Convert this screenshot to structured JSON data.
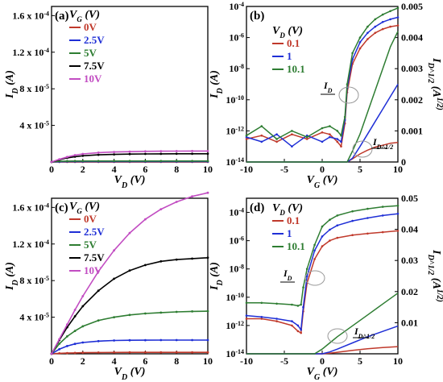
{
  "colors": {
    "red": "#c0392b",
    "blue": "#1f2fd6",
    "green": "#2e7d32",
    "black": "#000000",
    "magenta": "#c24dc2",
    "ellipse": "#999999"
  },
  "chart_data": [
    {
      "id": "a",
      "type": "line",
      "panel_label": "(a)",
      "legend_title": "V_G (V)",
      "xlabel": "V_D (V)",
      "ylabel": "I_D (A)",
      "xlim": [
        0,
        10
      ],
      "ylim": [
        0,
        0.00017
      ],
      "xticks": [
        0,
        2,
        4,
        6,
        8,
        10
      ],
      "yticks": [
        {
          "v": 4e-05,
          "label": "4 x 10^-5"
        },
        {
          "v": 8e-05,
          "label": "8 x 10^-5"
        },
        {
          "v": 0.00012,
          "label": "1.2 x 10^-4"
        },
        {
          "v": 0.00016,
          "label": "1.6 x 10^-4"
        }
      ],
      "x": [
        0,
        0.5,
        1,
        1.5,
        2,
        3,
        4,
        5,
        6,
        7,
        8,
        9,
        10
      ],
      "series": [
        {
          "name": "0V",
          "color": "red",
          "values": [
            0,
            1e-07,
            1e-07,
            1e-07,
            1e-07,
            1e-07,
            1e-07,
            1e-07,
            1e-07,
            1e-07,
            1e-07,
            1e-07,
            1e-07
          ]
        },
        {
          "name": "2.5V",
          "color": "blue",
          "values": [
            0,
            3e-07,
            4e-07,
            4e-07,
            4e-07,
            4e-07,
            4e-07,
            4e-07,
            4e-07,
            4e-07,
            4e-07,
            4e-07,
            4e-07
          ]
        },
        {
          "name": "5V",
          "color": "green",
          "values": [
            0,
            8e-07,
            1e-06,
            1.1e-06,
            1.1e-06,
            1.1e-06,
            1.1e-06,
            1.1e-06,
            1.1e-06,
            1.1e-06,
            1.1e-06,
            1.1e-06,
            1.1e-06
          ]
        },
        {
          "name": "7.5V",
          "color": "black",
          "values": [
            0,
            2.5e-06,
            4.5e-06,
            5.8e-06,
            6.8e-06,
            7.8e-06,
            8.3e-06,
            8.6e-06,
            8.8e-06,
            8.9e-06,
            9e-06,
            9e-06,
            9e-06
          ]
        },
        {
          "name": "10V",
          "color": "magenta",
          "values": [
            0,
            3e-06,
            5.5e-06,
            7.5e-06,
            8.8e-06,
            1.02e-05,
            1.09e-05,
            1.13e-05,
            1.16e-05,
            1.18e-05,
            1.19e-05,
            1.2e-05,
            1.2e-05
          ]
        }
      ]
    },
    {
      "id": "b",
      "type": "line",
      "panel_label": "(b)",
      "legend_title": "V_D (V)",
      "xlabel": "V_G (V)",
      "ylabel": "I_D (A)",
      "y2label": "I_D^1/2 (A^1/2)",
      "ylog": true,
      "xlim": [
        -10,
        10
      ],
      "ylim": [
        1e-14,
        0.0001
      ],
      "y2lim": [
        0,
        0.005
      ],
      "xticks": [
        -10,
        -5,
        0,
        5,
        10
      ],
      "yticks": [
        {
          "v": 1e-14,
          "label": "10^-14"
        },
        {
          "v": 1e-12,
          "label": "10^-12"
        },
        {
          "v": 1e-10,
          "label": "10^-10"
        },
        {
          "v": 1e-08,
          "label": "10^-8"
        },
        {
          "v": 1e-06,
          "label": "10^-6"
        },
        {
          "v": 0.0001,
          "label": "10^-4"
        }
      ],
      "y2ticks": [
        "0",
        "0.001",
        "0.002",
        "0.003",
        "0.004",
        "0.005"
      ],
      "annotation_id": "I_D",
      "annotation_sqrt": "I_D^1/2",
      "x": [
        -10,
        -8,
        -6,
        -4,
        -2,
        0,
        1,
        2,
        2.5,
        3,
        3.3,
        4,
        5,
        6,
        7,
        8,
        9,
        10
      ],
      "series": [
        {
          "name": "0.1",
          "color": "red",
          "log_values": [
            3e-13,
            5e-13,
            2e-13,
            6e-13,
            3e-13,
            8e-13,
            6e-13,
            2e-13,
            1e-13,
            3e-12,
            3e-10,
            2e-08,
            2e-07,
            8e-07,
            2e-06,
            3.5e-06,
            5e-06,
            6e-06
          ],
          "sqrt_values": [
            0,
            0,
            0,
            0,
            0,
            0,
            0,
            0,
            0,
            0,
            0,
            0.0001,
            0.00026,
            0.00038,
            0.00048,
            0.00054,
            0.0006,
            0.00063
          ]
        },
        {
          "name": "1",
          "color": "blue",
          "log_values": [
            4e-13,
            2e-13,
            6e-13,
            1e-13,
            5e-13,
            2e-13,
            4e-13,
            3e-13,
            2e-13,
            5e-12,
            6e-10,
            4e-08,
            5e-07,
            2e-06,
            5e-06,
            1e-05,
            1.5e-05,
            2e-05
          ],
          "sqrt_values": [
            0,
            0,
            0,
            0,
            0,
            0,
            0,
            0,
            0,
            0,
            0,
            0.00012,
            0.0005,
            0.0009,
            0.0013,
            0.0017,
            0.0021,
            0.0025
          ]
        },
        {
          "name": "10.1",
          "color": "green",
          "log_values": [
            5e-13,
            2e-12,
            3e-13,
            1e-12,
            4e-13,
            1.5e-12,
            2e-12,
            1e-12,
            5e-13,
            8e-12,
            1e-09,
            1e-07,
            1e-06,
            5e-06,
            1.5e-05,
            3e-05,
            5e-05,
            8e-05
          ],
          "sqrt_values": [
            0,
            0,
            0,
            0,
            0,
            0,
            0,
            0,
            0,
            0,
            0,
            0.00035,
            0.0009,
            0.0016,
            0.0023,
            0.003,
            0.0037,
            0.0042
          ]
        }
      ]
    },
    {
      "id": "c",
      "type": "line",
      "panel_label": "(c)",
      "legend_title": "V_G (V)",
      "xlabel": "V_D (V)",
      "ylabel": "I_D (A)",
      "xlim": [
        0,
        10
      ],
      "ylim": [
        0,
        0.00017
      ],
      "xticks": [
        0,
        2,
        4,
        6,
        8,
        10
      ],
      "yticks": [
        {
          "v": 4e-05,
          "label": "4 x 10^-5"
        },
        {
          "v": 8e-05,
          "label": "8 x 10^-5"
        },
        {
          "v": 0.00012,
          "label": "1.2 x 10^-4"
        },
        {
          "v": 0.00016,
          "label": "1.6 x 10^-4"
        }
      ],
      "x": [
        0,
        0.5,
        1,
        1.5,
        2,
        3,
        4,
        5,
        6,
        7,
        8,
        9,
        10
      ],
      "series": [
        {
          "name": "0V",
          "color": "red",
          "values": [
            0,
            5e-07,
            8e-07,
            1e-06,
            1.2e-06,
            1.4e-06,
            1.5e-06,
            1.6e-06,
            1.6e-06,
            1.6e-06,
            1.6e-06,
            1.6e-06,
            1.6e-06
          ]
        },
        {
          "name": "2.5V",
          "color": "blue",
          "values": [
            0,
            5e-06,
            8.5e-06,
            1.08e-05,
            1.23e-05,
            1.38e-05,
            1.45e-05,
            1.48e-05,
            1.49e-05,
            1.5e-05,
            1.5e-05,
            1.5e-05,
            1.5e-05
          ]
        },
        {
          "name": "5V",
          "color": "green",
          "values": [
            0,
            1.1e-05,
            1.9e-05,
            2.5e-05,
            3e-05,
            3.65e-05,
            4e-05,
            4.25e-05,
            4.4e-05,
            4.5e-05,
            4.58e-05,
            4.63e-05,
            4.66e-05
          ]
        },
        {
          "name": "7.5V",
          "color": "black",
          "values": [
            0,
            1.5e-05,
            2.9e-05,
            4.1e-05,
            5.2e-05,
            6.9e-05,
            8.2e-05,
            9.1e-05,
            9.7e-05,
            0.000101,
            0.000103,
            0.000104,
            0.000105
          ]
        },
        {
          "name": "10V",
          "color": "magenta",
          "values": [
            0,
            1.6e-05,
            3.2e-05,
            4.8e-05,
            6.3e-05,
            9e-05,
            0.000113,
            0.000132,
            0.000147,
            0.000158,
            0.000166,
            0.000172,
            0.000176
          ]
        }
      ]
    },
    {
      "id": "d",
      "type": "line",
      "panel_label": "(d)",
      "legend_title": "V_D (V)",
      "xlabel": "V_G (V)",
      "ylabel": "I_D (A)",
      "y2label": "I_D^1/2 (A^1/2)",
      "ylog": true,
      "xlim": [
        -10,
        10
      ],
      "ylim": [
        1e-14,
        0.001
      ],
      "y2lim": [
        0,
        0.05
      ],
      "xticks": [
        -10,
        -5,
        0,
        5,
        10
      ],
      "yticks": [
        {
          "v": 1e-14,
          "label": "10^-14"
        },
        {
          "v": 1e-12,
          "label": "10^-12"
        },
        {
          "v": 1e-10,
          "label": "10^-10"
        },
        {
          "v": 1e-08,
          "label": "10^-8"
        },
        {
          "v": 1e-06,
          "label": "10^-6"
        },
        {
          "v": 0.0001,
          "label": "10^-4"
        }
      ],
      "y2ticks": [
        "0.01",
        "0.02",
        "0.03",
        "0.04",
        "0.05"
      ],
      "annotation_id": "I_D",
      "annotation_sqrt": "I_D^1/2",
      "x": [
        -10,
        -8,
        -6,
        -4,
        -3.2,
        -2.8,
        -2.5,
        -2,
        -1,
        0,
        1,
        2,
        4,
        6,
        8,
        10
      ],
      "series": [
        {
          "name": "0.1",
          "color": "red",
          "log_values": [
            3e-12,
            3e-12,
            2e-12,
            1e-12,
            4e-13,
            3e-13,
            1e-11,
            1e-09,
            5e-08,
            4e-07,
            1e-06,
            1.6e-06,
            2.5e-06,
            3.2e-06,
            4e-06,
            5e-06
          ],
          "sqrt_values": [
            0,
            0,
            0,
            0,
            0,
            0,
            0,
            0,
            0,
            0,
            0.0002,
            0.0005,
            0.0011,
            0.0016,
            0.002,
            0.0023
          ]
        },
        {
          "name": "1",
          "color": "blue",
          "log_values": [
            5e-12,
            4e-12,
            3e-12,
            2e-12,
            1e-12,
            5e-13,
            2e-11,
            3e-09,
            2e-07,
            2e-06,
            6e-06,
            1.2e-05,
            2.5e-05,
            4e-05,
            6e-05,
            8e-05
          ],
          "sqrt_values": [
            0,
            0,
            0,
            0,
            0,
            0,
            0,
            0,
            0,
            0,
            0.0006,
            0.0015,
            0.0035,
            0.0055,
            0.0072,
            0.0089
          ]
        },
        {
          "name": "10.1",
          "color": "green",
          "log_values": [
            4e-11,
            4e-11,
            3.5e-11,
            3e-11,
            2.5e-11,
            3e-11,
            5e-10,
            1e-08,
            5e-07,
            1e-05,
            3e-05,
            6e-05,
            0.00012,
            0.00018,
            0.00025,
            0.0003
          ],
          "sqrt_values": [
            0,
            0,
            0,
            0,
            0,
            0,
            0,
            0,
            0,
            0.0015,
            0.0035,
            0.0055,
            0.009,
            0.0125,
            0.016,
            0.0195
          ]
        }
      ]
    }
  ]
}
